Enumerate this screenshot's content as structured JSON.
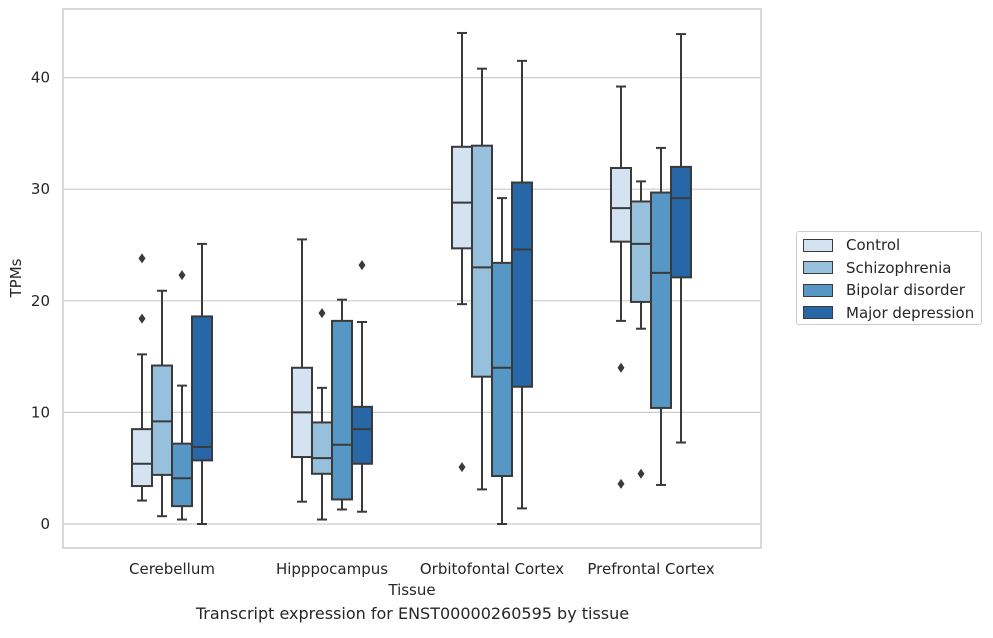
{
  "chart_data": {
    "type": "box",
    "ylabel": "TPMs",
    "xlabel": "Tissue",
    "caption": "Transcript expression for ENST00000260595 by tissue",
    "ylim": [
      -2.1,
      46.5
    ],
    "yticks": [
      0,
      10,
      20,
      30,
      40
    ],
    "grid": "horizontal",
    "legend_placement": "right",
    "categories": [
      "Cerebellum",
      "Hipppocampus",
      "Orbitofontal Cortex",
      "Prefrontal Cortex"
    ],
    "series": [
      {
        "name": "Control",
        "color": "#d4e3f2",
        "boxes": [
          {
            "whislo": 2.1,
            "q1": 3.4,
            "med": 5.4,
            "q3": 8.5,
            "whishi": 15.2,
            "fliers": [
              18.4,
              23.8
            ]
          },
          {
            "whislo": 2.0,
            "q1": 6.0,
            "med": 10.0,
            "q3": 14.0,
            "whishi": 25.5,
            "fliers": []
          },
          {
            "whislo": 19.7,
            "q1": 24.7,
            "med": 28.8,
            "q3": 33.8,
            "whishi": 44.0,
            "fliers": [
              5.1
            ]
          },
          {
            "whislo": 18.2,
            "q1": 25.3,
            "med": 28.3,
            "q3": 31.9,
            "whishi": 39.2,
            "fliers": [
              14.0,
              3.6
            ]
          }
        ]
      },
      {
        "name": "Schizophrenia",
        "color": "#97c0dc",
        "boxes": [
          {
            "whislo": 0.7,
            "q1": 4.4,
            "med": 9.2,
            "q3": 14.2,
            "whishi": 20.9,
            "fliers": []
          },
          {
            "whislo": 0.4,
            "q1": 4.5,
            "med": 5.9,
            "q3": 9.1,
            "whishi": 12.2,
            "fliers": [
              18.9
            ]
          },
          {
            "whislo": 3.1,
            "q1": 13.2,
            "med": 23.0,
            "q3": 33.9,
            "whishi": 40.8,
            "fliers": []
          },
          {
            "whislo": 17.5,
            "q1": 19.9,
            "med": 25.1,
            "q3": 28.9,
            "whishi": 30.7,
            "fliers": [
              4.5
            ]
          }
        ]
      },
      {
        "name": "Bipolar disorder",
        "color": "#5697c5",
        "boxes": [
          {
            "whislo": 0.4,
            "q1": 1.6,
            "med": 4.1,
            "q3": 7.2,
            "whishi": 12.4,
            "fliers": [
              22.3
            ]
          },
          {
            "whislo": 1.3,
            "q1": 2.2,
            "med": 7.1,
            "q3": 18.2,
            "whishi": 20.1,
            "fliers": []
          },
          {
            "whislo": 0.0,
            "q1": 4.3,
            "med": 14.0,
            "q3": 23.4,
            "whishi": 29.2,
            "fliers": []
          },
          {
            "whislo": 3.5,
            "q1": 10.4,
            "med": 22.5,
            "q3": 29.7,
            "whishi": 33.7,
            "fliers": []
          }
        ]
      },
      {
        "name": "Major depression",
        "color": "#2767a8",
        "boxes": [
          {
            "whislo": 0.0,
            "q1": 5.7,
            "med": 6.9,
            "q3": 18.6,
            "whishi": 25.1,
            "fliers": []
          },
          {
            "whislo": 1.1,
            "q1": 5.4,
            "med": 8.5,
            "q3": 10.5,
            "whishi": 18.1,
            "fliers": [
              23.2
            ]
          },
          {
            "whislo": 1.4,
            "q1": 12.3,
            "med": 24.6,
            "q3": 30.6,
            "whishi": 41.5,
            "fliers": []
          },
          {
            "whislo": 7.3,
            "q1": 22.1,
            "med": 29.2,
            "q3": 32.0,
            "whishi": 43.9,
            "fliers": []
          }
        ]
      }
    ]
  }
}
